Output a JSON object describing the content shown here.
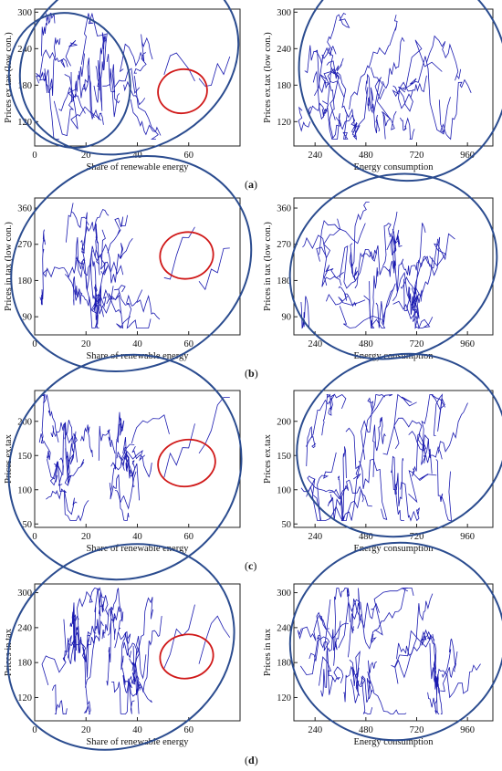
{
  "captions": [
    {
      "open": "(",
      "letter": "a",
      "close": ")"
    },
    {
      "open": "(",
      "letter": "b",
      "close": ")"
    },
    {
      "open": "(",
      "letter": "c",
      "close": ")"
    },
    {
      "open": "(",
      "letter": "d",
      "close": ")"
    }
  ],
  "chart_data": [
    {
      "id": "a-left",
      "type": "line",
      "ylabel": "Prices ex.tax (low con.)",
      "xlabel": "Share of renewable energy",
      "xticks": [
        0,
        20,
        40,
        60
      ],
      "yticks": [
        120,
        180,
        240,
        300
      ],
      "xlim": [
        0,
        80
      ],
      "ylim": [
        80,
        305
      ],
      "grid": false,
      "annotations": [
        "blue ellipse outlines",
        "red ellipse around outlier series"
      ]
    },
    {
      "id": "a-right",
      "type": "line",
      "ylabel": "Prices ex.tax (low con.)",
      "xlabel": "Energy consumption",
      "xticks": [
        240,
        480,
        720,
        960
      ],
      "yticks": [
        120,
        180,
        240,
        300
      ],
      "xlim": [
        140,
        1080
      ],
      "ylim": [
        80,
        305
      ],
      "grid": false,
      "annotations": [
        "blue ellipse outline"
      ]
    },
    {
      "id": "b-left",
      "type": "line",
      "ylabel": "Prices in tax (low con.)",
      "xlabel": "Share of renewable energy",
      "xticks": [
        0,
        20,
        40,
        60
      ],
      "yticks": [
        90,
        180,
        270,
        360
      ],
      "xlim": [
        0,
        80
      ],
      "ylim": [
        45,
        385
      ],
      "grid": false,
      "annotations": [
        "blue ellipse outline",
        "red ellipse around outlier series"
      ]
    },
    {
      "id": "b-right",
      "type": "line",
      "ylabel": "Prices in tax (low con.)",
      "xlabel": "Energy consumption",
      "xticks": [
        240,
        480,
        720,
        960
      ],
      "yticks": [
        90,
        180,
        270,
        360
      ],
      "xlim": [
        140,
        1080
      ],
      "ylim": [
        45,
        385
      ],
      "grid": false,
      "annotations": [
        "blue ellipse outline"
      ]
    },
    {
      "id": "c-left",
      "type": "line",
      "ylabel": "Prices ex.tax",
      "xlabel": "Share of renewable energy",
      "xticks": [
        0,
        20,
        40,
        60
      ],
      "yticks": [
        50,
        100,
        150,
        200
      ],
      "xlim": [
        0,
        80
      ],
      "ylim": [
        45,
        245
      ],
      "grid": false,
      "annotations": [
        "blue ellipse outline",
        "red ellipse around outlier series"
      ]
    },
    {
      "id": "c-right",
      "type": "line",
      "ylabel": "Prices ex.tax",
      "xlabel": "Energy consumption",
      "xticks": [
        240,
        480,
        720,
        960
      ],
      "yticks": [
        50,
        100,
        150,
        200
      ],
      "xlim": [
        140,
        1080
      ],
      "ylim": [
        45,
        245
      ],
      "grid": false,
      "annotations": [
        "blue ellipse outline"
      ]
    },
    {
      "id": "d-left",
      "type": "line",
      "ylabel": "Prices in tax",
      "xlabel": "Share of renewable energy",
      "xticks": [
        0,
        20,
        40,
        60
      ],
      "yticks": [
        120,
        180,
        240,
        300
      ],
      "xlim": [
        0,
        80
      ],
      "ylim": [
        80,
        315
      ],
      "grid": false,
      "annotations": [
        "blue ellipse outline",
        "red ellipse around outlier series"
      ]
    },
    {
      "id": "d-right",
      "type": "line",
      "ylabel": "Prices in tax",
      "xlabel": "Energy consumption",
      "xticks": [
        240,
        480,
        720,
        960
      ],
      "yticks": [
        120,
        180,
        240,
        300
      ],
      "xlim": [
        140,
        1080
      ],
      "ylim": [
        80,
        315
      ],
      "grid": false,
      "annotations": [
        "blue ellipse outline"
      ]
    }
  ]
}
